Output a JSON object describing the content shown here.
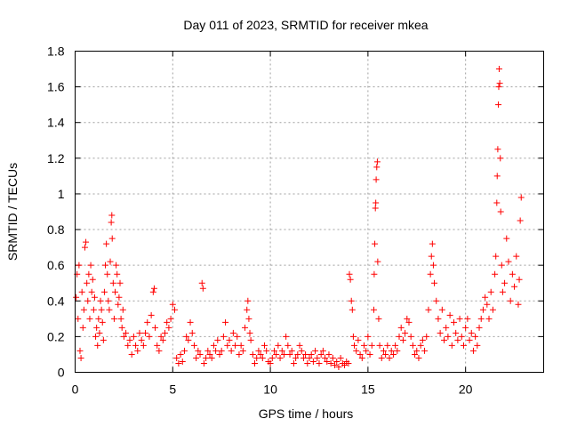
{
  "chart_data": {
    "type": "scatter",
    "title": "Day 011 of 2023, SRMTID for receiver mkea",
    "xlabel": "GPS time / hours",
    "ylabel": "SRMTID / TECUs",
    "xlim": [
      0,
      24
    ],
    "ylim": [
      0,
      1.8
    ],
    "xticks": [
      0,
      5,
      10,
      15,
      20
    ],
    "xtick_labels": [
      "0",
      "5",
      "10",
      "15",
      "20"
    ],
    "yticks": [
      0,
      0.2,
      0.4,
      0.6,
      0.8,
      1.0,
      1.2,
      1.4,
      1.6,
      1.8
    ],
    "ytick_labels": [
      "0",
      "0.2",
      "0.4",
      "0.6",
      "0.8",
      "1",
      "1.2",
      "1.4",
      "1.6",
      "1.8"
    ],
    "grid": true,
    "marker": "+",
    "color": "#ff0000",
    "series": [
      {
        "name": "SRMTID",
        "points": [
          [
            0.05,
            0.42
          ],
          [
            0.1,
            0.55
          ],
          [
            0.15,
            0.3
          ],
          [
            0.2,
            0.6
          ],
          [
            0.25,
            0.12
          ],
          [
            0.3,
            0.08
          ],
          [
            0.35,
            0.45
          ],
          [
            0.4,
            0.25
          ],
          [
            0.45,
            0.35
          ],
          [
            0.5,
            0.7
          ],
          [
            0.55,
            0.73
          ],
          [
            0.6,
            0.5
          ],
          [
            0.65,
            0.4
          ],
          [
            0.7,
            0.55
          ],
          [
            0.75,
            0.3
          ],
          [
            0.8,
            0.6
          ],
          [
            0.85,
            0.45
          ],
          [
            0.9,
            0.52
          ],
          [
            0.95,
            0.35
          ],
          [
            1.0,
            0.42
          ],
          [
            1.05,
            0.2
          ],
          [
            1.1,
            0.25
          ],
          [
            1.15,
            0.15
          ],
          [
            1.2,
            0.3
          ],
          [
            1.25,
            0.22
          ],
          [
            1.3,
            0.4
          ],
          [
            1.35,
            0.35
          ],
          [
            1.4,
            0.28
          ],
          [
            1.45,
            0.18
          ],
          [
            1.5,
            0.45
          ],
          [
            1.55,
            0.6
          ],
          [
            1.6,
            0.72
          ],
          [
            1.65,
            0.55
          ],
          [
            1.7,
            0.4
          ],
          [
            1.75,
            0.35
          ],
          [
            1.8,
            0.62
          ],
          [
            1.85,
            0.84
          ],
          [
            1.88,
            0.88
          ],
          [
            1.9,
            0.75
          ],
          [
            1.95,
            0.5
          ],
          [
            2.0,
            0.3
          ],
          [
            2.05,
            0.45
          ],
          [
            2.1,
            0.6
          ],
          [
            2.15,
            0.55
          ],
          [
            2.2,
            0.38
          ],
          [
            2.25,
            0.42
          ],
          [
            2.3,
            0.5
          ],
          [
            2.35,
            0.3
          ],
          [
            2.4,
            0.25
          ],
          [
            2.45,
            0.35
          ],
          [
            2.5,
            0.2
          ],
          [
            2.6,
            0.22
          ],
          [
            2.7,
            0.15
          ],
          [
            2.8,
            0.18
          ],
          [
            2.9,
            0.1
          ],
          [
            3.0,
            0.2
          ],
          [
            3.1,
            0.15
          ],
          [
            3.2,
            0.12
          ],
          [
            3.3,
            0.22
          ],
          [
            3.4,
            0.18
          ],
          [
            3.5,
            0.15
          ],
          [
            3.6,
            0.22
          ],
          [
            3.7,
            0.28
          ],
          [
            3.8,
            0.2
          ],
          [
            3.9,
            0.32
          ],
          [
            4.0,
            0.45
          ],
          [
            4.05,
            0.47
          ],
          [
            4.1,
            0.25
          ],
          [
            4.2,
            0.15
          ],
          [
            4.3,
            0.12
          ],
          [
            4.4,
            0.2
          ],
          [
            4.5,
            0.18
          ],
          [
            4.6,
            0.22
          ],
          [
            4.7,
            0.28
          ],
          [
            4.8,
            0.25
          ],
          [
            4.9,
            0.3
          ],
          [
            5.0,
            0.38
          ],
          [
            5.1,
            0.35
          ],
          [
            5.2,
            0.08
          ],
          [
            5.3,
            0.05
          ],
          [
            5.4,
            0.1
          ],
          [
            5.5,
            0.06
          ],
          [
            5.6,
            0.12
          ],
          [
            5.7,
            0.2
          ],
          [
            5.8,
            0.18
          ],
          [
            5.9,
            0.28
          ],
          [
            6.0,
            0.22
          ],
          [
            6.1,
            0.15
          ],
          [
            6.2,
            0.08
          ],
          [
            6.3,
            0.12
          ],
          [
            6.4,
            0.1
          ],
          [
            6.5,
            0.5
          ],
          [
            6.55,
            0.47
          ],
          [
            6.6,
            0.05
          ],
          [
            6.7,
            0.08
          ],
          [
            6.8,
            0.12
          ],
          [
            6.9,
            0.1
          ],
          [
            7.0,
            0.08
          ],
          [
            7.1,
            0.15
          ],
          [
            7.2,
            0.12
          ],
          [
            7.3,
            0.18
          ],
          [
            7.4,
            0.1
          ],
          [
            7.5,
            0.12
          ],
          [
            7.6,
            0.2
          ],
          [
            7.7,
            0.28
          ],
          [
            7.8,
            0.15
          ],
          [
            7.9,
            0.18
          ],
          [
            8.0,
            0.12
          ],
          [
            8.1,
            0.22
          ],
          [
            8.2,
            0.15
          ],
          [
            8.3,
            0.2
          ],
          [
            8.4,
            0.1
          ],
          [
            8.5,
            0.15
          ],
          [
            8.6,
            0.12
          ],
          [
            8.7,
            0.25
          ],
          [
            8.8,
            0.35
          ],
          [
            8.85,
            0.4
          ],
          [
            8.9,
            0.3
          ],
          [
            8.95,
            0.22
          ],
          [
            9.0,
            0.18
          ],
          [
            9.1,
            0.1
          ],
          [
            9.2,
            0.05
          ],
          [
            9.3,
            0.08
          ],
          [
            9.4,
            0.12
          ],
          [
            9.5,
            0.1
          ],
          [
            9.6,
            0.08
          ],
          [
            9.7,
            0.15
          ],
          [
            9.8,
            0.12
          ],
          [
            9.9,
            0.06
          ],
          [
            10.0,
            0.05
          ],
          [
            10.1,
            0.08
          ],
          [
            10.2,
            0.12
          ],
          [
            10.3,
            0.1
          ],
          [
            10.4,
            0.15
          ],
          [
            10.5,
            0.08
          ],
          [
            10.6,
            0.12
          ],
          [
            10.7,
            0.1
          ],
          [
            10.8,
            0.2
          ],
          [
            10.9,
            0.15
          ],
          [
            11.0,
            0.1
          ],
          [
            11.1,
            0.12
          ],
          [
            11.2,
            0.05
          ],
          [
            11.3,
            0.08
          ],
          [
            11.4,
            0.1
          ],
          [
            11.5,
            0.15
          ],
          [
            11.6,
            0.12
          ],
          [
            11.7,
            0.08
          ],
          [
            11.8,
            0.1
          ],
          [
            11.9,
            0.05
          ],
          [
            12.0,
            0.08
          ],
          [
            12.1,
            0.1
          ],
          [
            12.2,
            0.06
          ],
          [
            12.3,
            0.12
          ],
          [
            12.4,
            0.08
          ],
          [
            12.5,
            0.05
          ],
          [
            12.6,
            0.1
          ],
          [
            12.7,
            0.12
          ],
          [
            12.8,
            0.08
          ],
          [
            12.9,
            0.06
          ],
          [
            13.0,
            0.1
          ],
          [
            13.1,
            0.05
          ],
          [
            13.2,
            0.08
          ],
          [
            13.3,
            0.04
          ],
          [
            13.4,
            0.06
          ],
          [
            13.5,
            0.03
          ],
          [
            13.6,
            0.08
          ],
          [
            13.7,
            0.05
          ],
          [
            13.8,
            0.04
          ],
          [
            13.9,
            0.06
          ],
          [
            14.0,
            0.05
          ],
          [
            14.05,
            0.55
          ],
          [
            14.1,
            0.52
          ],
          [
            14.15,
            0.4
          ],
          [
            14.2,
            0.35
          ],
          [
            14.25,
            0.2
          ],
          [
            14.3,
            0.15
          ],
          [
            14.4,
            0.12
          ],
          [
            14.5,
            0.18
          ],
          [
            14.6,
            0.1
          ],
          [
            14.7,
            0.08
          ],
          [
            14.8,
            0.15
          ],
          [
            14.9,
            0.12
          ],
          [
            15.0,
            0.2
          ],
          [
            15.1,
            0.1
          ],
          [
            15.2,
            0.15
          ],
          [
            15.3,
            0.35
          ],
          [
            15.32,
            0.55
          ],
          [
            15.35,
            0.72
          ],
          [
            15.38,
            0.92
          ],
          [
            15.4,
            0.95
          ],
          [
            15.42,
            1.08
          ],
          [
            15.45,
            1.15
          ],
          [
            15.48,
            1.18
          ],
          [
            15.5,
            0.62
          ],
          [
            15.55,
            0.3
          ],
          [
            15.6,
            0.15
          ],
          [
            15.7,
            0.08
          ],
          [
            15.8,
            0.12
          ],
          [
            15.9,
            0.1
          ],
          [
            16.0,
            0.15
          ],
          [
            16.1,
            0.08
          ],
          [
            16.2,
            0.12
          ],
          [
            16.3,
            0.1
          ],
          [
            16.4,
            0.15
          ],
          [
            16.5,
            0.12
          ],
          [
            16.6,
            0.2
          ],
          [
            16.7,
            0.25
          ],
          [
            16.8,
            0.18
          ],
          [
            16.9,
            0.22
          ],
          [
            17.0,
            0.3
          ],
          [
            17.1,
            0.28
          ],
          [
            17.2,
            0.2
          ],
          [
            17.3,
            0.15
          ],
          [
            17.4,
            0.1
          ],
          [
            17.5,
            0.12
          ],
          [
            17.6,
            0.08
          ],
          [
            17.7,
            0.15
          ],
          [
            17.8,
            0.18
          ],
          [
            17.9,
            0.12
          ],
          [
            18.0,
            0.2
          ],
          [
            18.1,
            0.35
          ],
          [
            18.2,
            0.55
          ],
          [
            18.25,
            0.65
          ],
          [
            18.3,
            0.72
          ],
          [
            18.35,
            0.6
          ],
          [
            18.4,
            0.5
          ],
          [
            18.5,
            0.4
          ],
          [
            18.6,
            0.3
          ],
          [
            18.7,
            0.22
          ],
          [
            18.8,
            0.35
          ],
          [
            18.9,
            0.18
          ],
          [
            19.0,
            0.25
          ],
          [
            19.1,
            0.2
          ],
          [
            19.2,
            0.32
          ],
          [
            19.3,
            0.15
          ],
          [
            19.4,
            0.28
          ],
          [
            19.5,
            0.22
          ],
          [
            19.6,
            0.18
          ],
          [
            19.7,
            0.3
          ],
          [
            19.8,
            0.2
          ],
          [
            19.9,
            0.15
          ],
          [
            20.0,
            0.25
          ],
          [
            20.1,
            0.3
          ],
          [
            20.2,
            0.18
          ],
          [
            20.3,
            0.22
          ],
          [
            20.4,
            0.12
          ],
          [
            20.5,
            0.2
          ],
          [
            20.6,
            0.15
          ],
          [
            20.7,
            0.25
          ],
          [
            20.8,
            0.3
          ],
          [
            20.9,
            0.35
          ],
          [
            21.0,
            0.42
          ],
          [
            21.1,
            0.38
          ],
          [
            21.2,
            0.3
          ],
          [
            21.3,
            0.45
          ],
          [
            21.4,
            0.35
          ],
          [
            21.5,
            0.55
          ],
          [
            21.55,
            0.65
          ],
          [
            21.6,
            0.95
          ],
          [
            21.62,
            1.1
          ],
          [
            21.65,
            1.25
          ],
          [
            21.68,
            1.5
          ],
          [
            21.7,
            1.6
          ],
          [
            21.72,
            1.7
          ],
          [
            21.75,
            1.62
          ],
          [
            21.78,
            1.2
          ],
          [
            21.8,
            0.9
          ],
          [
            21.85,
            0.6
          ],
          [
            21.9,
            0.45
          ],
          [
            22.0,
            0.5
          ],
          [
            22.1,
            0.75
          ],
          [
            22.2,
            0.62
          ],
          [
            22.3,
            0.4
          ],
          [
            22.4,
            0.55
          ],
          [
            22.5,
            0.48
          ],
          [
            22.6,
            0.65
          ],
          [
            22.7,
            0.38
          ],
          [
            22.75,
            0.52
          ],
          [
            22.8,
            0.85
          ],
          [
            22.85,
            0.98
          ]
        ]
      }
    ]
  }
}
